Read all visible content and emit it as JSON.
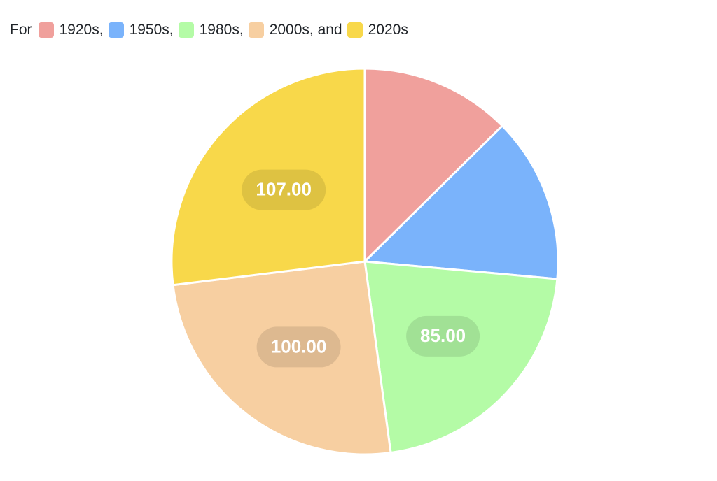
{
  "legend": {
    "prefix": "For",
    "items": [
      {
        "label": "1920s,",
        "color": "#f0a09c"
      },
      {
        "label": "1950s,",
        "color": "#7ab3fb"
      },
      {
        "label": "1980s,",
        "color": "#b4fba6"
      },
      {
        "label": "2000s, and",
        "color": "#f7cfa1"
      },
      {
        "label": "2020s",
        "color": "#f8d84a"
      }
    ]
  },
  "chart_data": {
    "type": "pie",
    "categories": [
      "1920s",
      "1950s",
      "1980s",
      "2000s",
      "2020s"
    ],
    "values": [
      50,
      55,
      85,
      100,
      107
    ],
    "colors": [
      "#f0a09c",
      "#7ab3fb",
      "#b4fba6",
      "#f7cfa1",
      "#f8d84a"
    ],
    "data_labels": [
      "",
      "",
      "85.00",
      "100.00",
      "107.00"
    ],
    "start_angle": "12 o'clock",
    "direction": "clockwise"
  }
}
